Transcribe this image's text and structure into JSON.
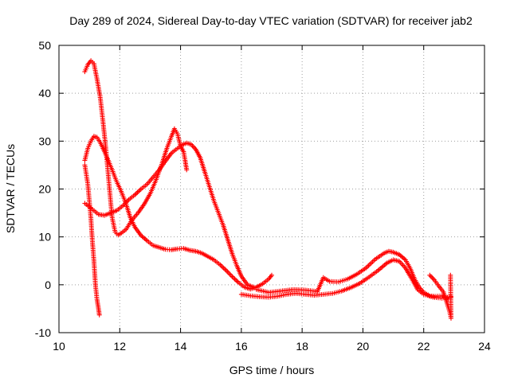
{
  "chart_data": {
    "type": "scatter",
    "title": "Day 289 of 2024, Sidereal Day-to-day VTEC variation (SDTVAR) for receiver jab2",
    "xlabel": "GPS time / hours",
    "ylabel": "SDTVAR / TECUs",
    "xlim": [
      10,
      24
    ],
    "ylim": [
      -10,
      50
    ],
    "xticks": [
      10,
      12,
      14,
      16,
      18,
      20,
      22,
      24
    ],
    "yticks": [
      -10,
      0,
      10,
      20,
      30,
      40,
      50
    ],
    "grid": true,
    "color": "#ff0000",
    "marker": "plus",
    "series": [
      {
        "name": "track-a",
        "points": [
          [
            10.85,
            44.5
          ],
          [
            10.95,
            46
          ],
          [
            11.05,
            46.8
          ],
          [
            11.15,
            46.2
          ],
          [
            11.25,
            43
          ],
          [
            11.35,
            39.5
          ],
          [
            11.45,
            34
          ],
          [
            11.55,
            28
          ],
          [
            11.65,
            21
          ],
          [
            11.75,
            14
          ],
          [
            11.85,
            11
          ],
          [
            11.95,
            10.4
          ],
          [
            12.05,
            10.8
          ],
          [
            12.2,
            11.5
          ],
          [
            12.4,
            13.5
          ],
          [
            12.6,
            15
          ],
          [
            12.8,
            16.8
          ],
          [
            13.0,
            19
          ],
          [
            13.2,
            22
          ],
          [
            13.4,
            25.5
          ],
          [
            13.55,
            28.5
          ],
          [
            13.7,
            31
          ],
          [
            13.8,
            32.6
          ],
          [
            13.9,
            31.5
          ],
          [
            14.0,
            29
          ],
          [
            14.1,
            27.8
          ],
          [
            14.15,
            26
          ],
          [
            14.2,
            24
          ]
        ]
      },
      {
        "name": "track-b",
        "points": [
          [
            10.85,
            26
          ],
          [
            10.95,
            28.5
          ],
          [
            11.05,
            30
          ],
          [
            11.15,
            31
          ],
          [
            11.25,
            30.8
          ],
          [
            11.35,
            29.8
          ],
          [
            11.45,
            28.5
          ],
          [
            11.6,
            26.3
          ],
          [
            11.75,
            24
          ],
          [
            11.9,
            21.5
          ],
          [
            12.05,
            19.5
          ],
          [
            12.2,
            17
          ],
          [
            12.35,
            14
          ],
          [
            12.5,
            12
          ],
          [
            12.7,
            10.3
          ],
          [
            12.9,
            9.2
          ],
          [
            13.1,
            8.2
          ],
          [
            13.3,
            7.8
          ],
          [
            13.5,
            7.4
          ],
          [
            13.7,
            7.3
          ],
          [
            13.9,
            7.5
          ],
          [
            14.1,
            7.6
          ],
          [
            14.3,
            7.2
          ],
          [
            14.5,
            7.0
          ],
          [
            14.7,
            6.6
          ],
          [
            14.9,
            5.9
          ],
          [
            15.1,
            5.2
          ],
          [
            15.3,
            4.2
          ],
          [
            15.5,
            3.0
          ],
          [
            15.7,
            1.7
          ],
          [
            15.9,
            0.5
          ],
          [
            16.1,
            -0.5
          ],
          [
            16.3,
            -0.9
          ],
          [
            16.5,
            -0.5
          ],
          [
            16.7,
            0.2
          ],
          [
            16.9,
            1.2
          ],
          [
            17.0,
            2.0
          ]
        ]
      },
      {
        "name": "track-c",
        "points": [
          [
            10.85,
            17
          ],
          [
            11.0,
            16.3
          ],
          [
            11.15,
            15.5
          ],
          [
            11.3,
            14.7
          ],
          [
            11.5,
            14.5
          ],
          [
            11.7,
            15
          ],
          [
            11.9,
            15.5
          ],
          [
            12.1,
            16.5
          ],
          [
            12.3,
            17.8
          ],
          [
            12.5,
            18.8
          ],
          [
            12.7,
            20
          ],
          [
            12.9,
            21
          ],
          [
            13.1,
            22.5
          ],
          [
            13.3,
            24
          ],
          [
            13.5,
            25.8
          ],
          [
            13.7,
            27.5
          ],
          [
            13.9,
            28.5
          ],
          [
            14.05,
            29.2
          ],
          [
            14.2,
            29.6
          ],
          [
            14.35,
            29.3
          ],
          [
            14.5,
            28.3
          ],
          [
            14.65,
            26.5
          ],
          [
            14.8,
            23.5
          ],
          [
            14.95,
            20.5
          ],
          [
            15.1,
            17.5
          ],
          [
            15.25,
            15
          ],
          [
            15.4,
            12.5
          ],
          [
            15.55,
            9.5
          ],
          [
            15.7,
            6.5
          ],
          [
            15.85,
            4
          ],
          [
            16.0,
            1.8
          ],
          [
            16.2,
            0
          ],
          [
            16.4,
            -0.5
          ]
        ]
      },
      {
        "name": "track-d",
        "points": [
          [
            10.85,
            25
          ],
          [
            10.95,
            21
          ],
          [
            11.05,
            14
          ],
          [
            11.1,
            9
          ],
          [
            11.15,
            5
          ],
          [
            11.2,
            0
          ],
          [
            11.25,
            -3
          ],
          [
            11.3,
            -5
          ],
          [
            11.33,
            -6.3
          ]
        ]
      },
      {
        "name": "track-e",
        "points": [
          [
            16.0,
            -2.0
          ],
          [
            16.3,
            -2.3
          ],
          [
            16.6,
            -2.5
          ],
          [
            16.9,
            -2.6
          ],
          [
            17.2,
            -2.4
          ],
          [
            17.5,
            -2.0
          ],
          [
            17.8,
            -1.8
          ],
          [
            18.1,
            -2.0
          ],
          [
            18.4,
            -2.2
          ],
          [
            18.7,
            -2.0
          ],
          [
            19.0,
            -1.8
          ],
          [
            19.3,
            -1.3
          ],
          [
            19.6,
            -0.6
          ],
          [
            19.9,
            0.3
          ],
          [
            20.2,
            1.6
          ],
          [
            20.5,
            3.0
          ],
          [
            20.8,
            4.6
          ],
          [
            21.0,
            5.2
          ],
          [
            21.2,
            4.9
          ],
          [
            21.4,
            3.5
          ],
          [
            21.6,
            1.3
          ],
          [
            21.8,
            -1.0
          ],
          [
            22.0,
            -2.0
          ],
          [
            22.3,
            -2.6
          ],
          [
            22.6,
            -2.8
          ],
          [
            22.9,
            -2.5
          ]
        ]
      },
      {
        "name": "track-f",
        "points": [
          [
            16.5,
            -1.0
          ],
          [
            16.9,
            -1.6
          ],
          [
            17.3,
            -1.3
          ],
          [
            17.7,
            -1.0
          ],
          [
            18.1,
            -1.1
          ],
          [
            18.5,
            -1.4
          ],
          [
            18.7,
            1.5
          ],
          [
            18.9,
            0.7
          ],
          [
            19.2,
            0.6
          ],
          [
            19.5,
            1.2
          ],
          [
            19.8,
            2.2
          ],
          [
            20.1,
            3.5
          ],
          [
            20.4,
            5.3
          ],
          [
            20.7,
            6.6
          ],
          [
            20.85,
            7.0
          ],
          [
            21.0,
            6.8
          ],
          [
            21.2,
            6.3
          ],
          [
            21.4,
            5.2
          ],
          [
            21.55,
            3.5
          ],
          [
            21.7,
            1.2
          ],
          [
            21.85,
            -0.5
          ],
          [
            22.0,
            -1.6
          ],
          [
            22.2,
            -2.3
          ],
          [
            22.4,
            -2.4
          ],
          [
            22.6,
            -2.3
          ],
          [
            22.8,
            -3.0
          ]
        ]
      },
      {
        "name": "track-g",
        "points": [
          [
            22.2,
            2.0
          ],
          [
            22.35,
            1.0
          ],
          [
            22.5,
            -0.3
          ],
          [
            22.65,
            -1.5
          ],
          [
            22.75,
            -3.5
          ],
          [
            22.85,
            -5.5
          ],
          [
            22.9,
            -7.0
          ],
          [
            22.88,
            2.0
          ]
        ]
      }
    ]
  }
}
